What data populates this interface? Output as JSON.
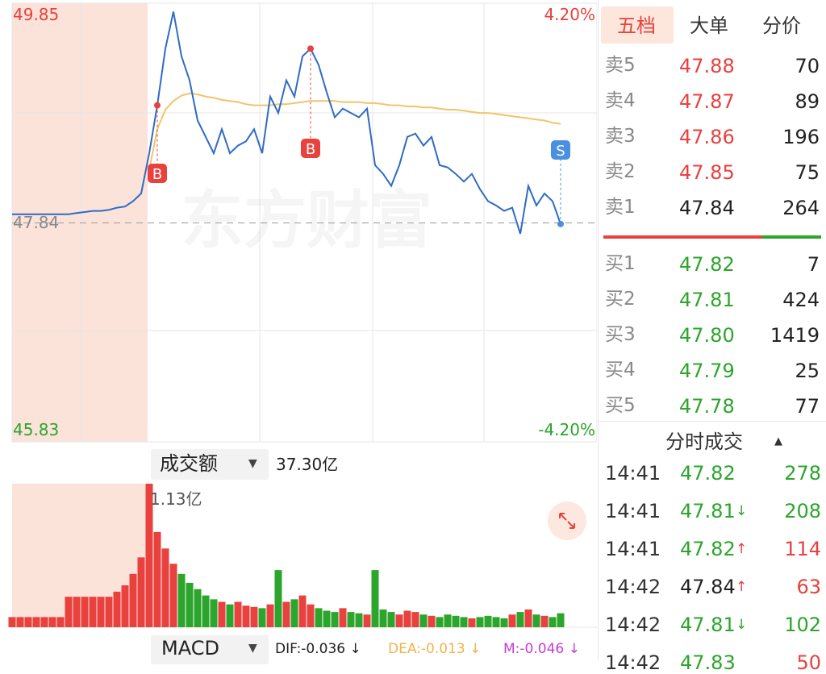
{
  "tabs": [
    "五档",
    "大单",
    "分价"
  ],
  "price_chart": {
    "ylim": [
      45.83,
      49.85
    ],
    "ref": 47.84,
    "pct_top": "4.20%",
    "pct_bottom": "-4.20%",
    "watermark": "东方财富",
    "markers": [
      "B",
      "B",
      "S"
    ],
    "line_color": "#2f6bc4",
    "avg_color": "#f2c46a",
    "up_color": "#e8413e",
    "down_color": "#2ba52b",
    "price": [
      47.92,
      47.92,
      47.92,
      47.92,
      47.92,
      47.92,
      47.92,
      47.92,
      47.93,
      47.94,
      47.95,
      47.95,
      47.96,
      47.98,
      47.99,
      48.04,
      48.11,
      48.48,
      48.92,
      49.44,
      49.78,
      49.37,
      49.15,
      48.78,
      48.63,
      48.48,
      48.7,
      48.48,
      48.55,
      48.59,
      48.7,
      48.48,
      49.0,
      48.85,
      49.15,
      49.0,
      49.37,
      49.44,
      49.29,
      49.04,
      48.81,
      48.89,
      48.85,
      48.81,
      48.89,
      48.37,
      48.29,
      48.18,
      48.37,
      48.63,
      48.66,
      48.55,
      48.63,
      48.37,
      48.35,
      48.29,
      48.22,
      48.29,
      48.15,
      48.04,
      48.0,
      47.95,
      47.98,
      47.74,
      48.18,
      48.0,
      48.11,
      48.04,
      47.83
    ],
    "avg": [
      null,
      null,
      null,
      null,
      null,
      null,
      null,
      null,
      null,
      null,
      null,
      null,
      null,
      null,
      null,
      null,
      null,
      48.33,
      48.7,
      48.88,
      48.96,
      49.01,
      49.03,
      49.02,
      49.0,
      48.99,
      48.97,
      48.96,
      48.95,
      48.93,
      48.92,
      48.92,
      48.92,
      48.93,
      48.93,
      48.94,
      48.95,
      48.96,
      48.96,
      48.96,
      48.96,
      48.95,
      48.95,
      48.95,
      48.94,
      48.94,
      48.93,
      48.92,
      48.92,
      48.91,
      48.91,
      48.9,
      48.9,
      48.89,
      48.88,
      48.88,
      48.87,
      48.86,
      48.85,
      48.85,
      48.84,
      48.83,
      48.82,
      48.81,
      48.8,
      48.79,
      48.78,
      48.76,
      48.75
    ]
  },
  "volume": {
    "metric": "成交额",
    "total": "37.30亿",
    "max": {
      "value": 1.13,
      "label": "1.13亿"
    },
    "values": [
      0.08,
      0.08,
      0.08,
      0.08,
      0.08,
      0.08,
      0.08,
      0.24,
      0.24,
      0.24,
      0.24,
      0.24,
      0.24,
      0.28,
      0.33,
      0.42,
      0.55,
      1.13,
      0.75,
      0.62,
      0.5,
      0.42,
      0.35,
      0.3,
      0.25,
      0.22,
      0.2,
      0.18,
      0.2,
      0.17,
      0.16,
      0.15,
      0.18,
      0.45,
      0.2,
      0.22,
      0.25,
      0.18,
      0.15,
      0.13,
      0.12,
      0.15,
      0.12,
      0.11,
      0.1,
      0.45,
      0.14,
      0.12,
      0.1,
      0.13,
      0.12,
      0.1,
      0.09,
      0.08,
      0.1,
      0.09,
      0.08,
      0.07,
      0.08,
      0.09,
      0.08,
      0.07,
      0.1,
      0.12,
      0.14,
      0.1,
      0.09,
      0.08,
      0.11
    ]
  },
  "macd": {
    "label": "MACD",
    "dif": "DIF:-0.036 ↓",
    "dea": "DEA:-0.013 ↓",
    "m": "M:-0.046 ↓"
  },
  "order_book": {
    "asks": [
      {
        "label": "卖5",
        "price": "47.88",
        "qty": "70",
        "color": "red"
      },
      {
        "label": "卖4",
        "price": "47.87",
        "qty": "89",
        "color": "red"
      },
      {
        "label": "卖3",
        "price": "47.86",
        "qty": "196",
        "color": "red"
      },
      {
        "label": "卖2",
        "price": "47.85",
        "qty": "75",
        "color": "red"
      },
      {
        "label": "卖1",
        "price": "47.84",
        "qty": "264",
        "color": "black"
      }
    ],
    "bids": [
      {
        "label": "买1",
        "price": "47.82",
        "qty": "7",
        "color": "green"
      },
      {
        "label": "买2",
        "price": "47.81",
        "qty": "424",
        "color": "green"
      },
      {
        "label": "买3",
        "price": "47.80",
        "qty": "1419",
        "color": "green"
      },
      {
        "label": "买4",
        "price": "47.79",
        "qty": "25",
        "color": "green"
      },
      {
        "label": "买5",
        "price": "47.78",
        "qty": "77",
        "color": "green"
      }
    ]
  },
  "trades": {
    "title": "分时成交",
    "rows": [
      {
        "time": "14:41",
        "price": "47.82",
        "qty": "278",
        "price_color": "green",
        "qty_color": "green"
      },
      {
        "time": "14:41",
        "price": "47.81",
        "arrow": "↓",
        "qty": "208",
        "price_color": "green",
        "qty_color": "green"
      },
      {
        "time": "14:41",
        "price": "47.82",
        "arrow": "↑",
        "qty": "114",
        "price_color": "green",
        "qty_color": "red"
      },
      {
        "time": "14:42",
        "price": "47.84",
        "arrow": "↑",
        "qty": "63",
        "price_color": "black",
        "qty_color": "red"
      },
      {
        "time": "14:42",
        "price": "47.81",
        "arrow": "↓",
        "qty": "102",
        "price_color": "green",
        "qty_color": "green"
      },
      {
        "time": "14:42",
        "price": "47.83",
        "qty": "50",
        "price_color": "green",
        "qty_color": "red"
      }
    ]
  }
}
